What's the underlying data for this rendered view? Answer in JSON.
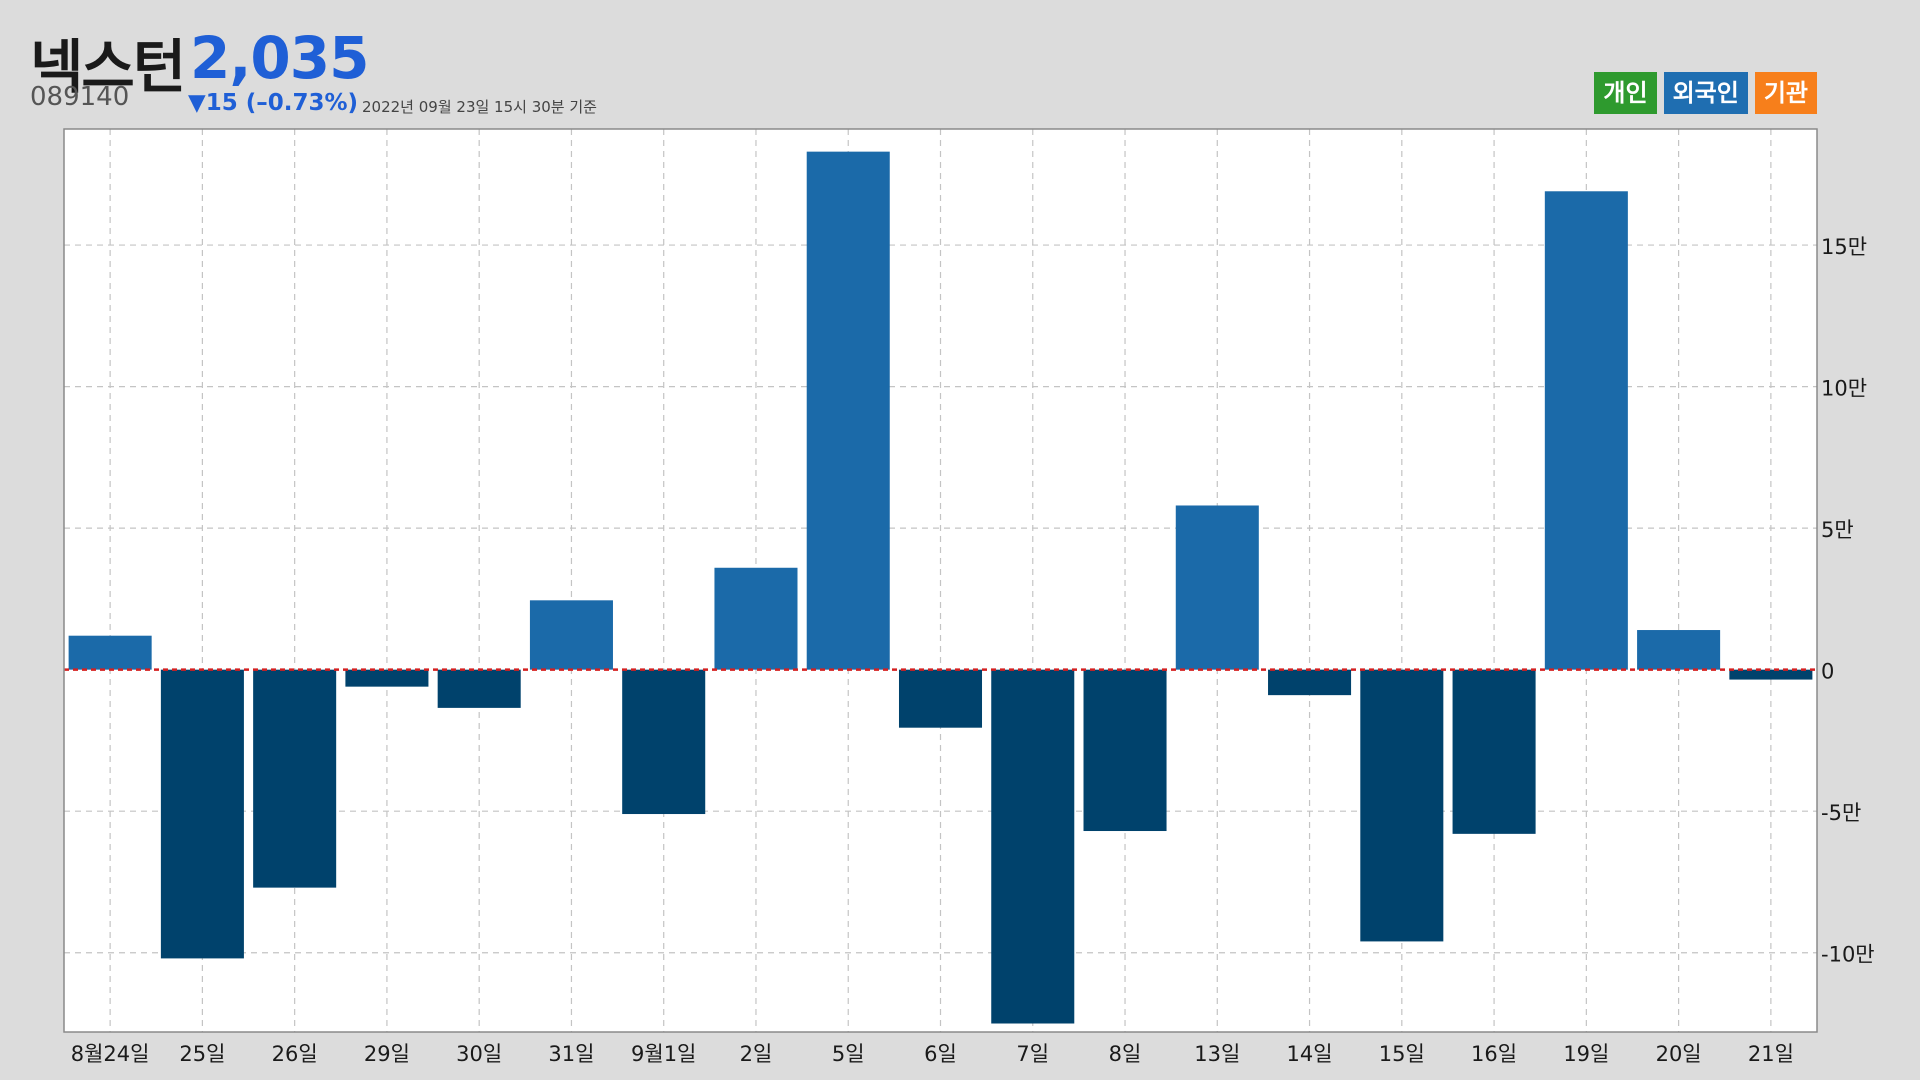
{
  "header": {
    "name": "넥스턴",
    "price": "2,035",
    "code": "089140",
    "change": "▼15 (–0.73%)",
    "basis": "2022년 09월 23일 15시 30분 기준"
  },
  "legend": [
    {
      "label": "개인",
      "color": "#2e9a2e"
    },
    {
      "label": "외국인",
      "color": "#1f6eb1"
    },
    {
      "label": "기관",
      "color": "#f77f1b"
    }
  ],
  "chart_data": {
    "type": "bar",
    "series_name": "외국인",
    "categories": [
      "8월24일",
      "25일",
      "26일",
      "29일",
      "30일",
      "31일",
      "9월1일",
      "2일",
      "5일",
      "6일",
      "7일",
      "8일",
      "13일",
      "14일",
      "15일",
      "16일",
      "19일",
      "20일",
      "21일"
    ],
    "values": [
      12000,
      -102000,
      -77000,
      -6000,
      -13500,
      24500,
      -51000,
      36000,
      183000,
      -20500,
      -125000,
      -57000,
      58000,
      -9000,
      -96000,
      -58000,
      169000,
      14000,
      -3500
    ],
    "ylim": [
      -128000,
      191000
    ],
    "yticks": [
      {
        "value": -100000,
        "label": "-10만"
      },
      {
        "value": -50000,
        "label": "-5만"
      },
      {
        "value": 0,
        "label": "0"
      },
      {
        "value": 50000,
        "label": "5만"
      },
      {
        "value": 100000,
        "label": "10만"
      },
      {
        "value": 150000,
        "label": "15만"
      }
    ],
    "positive_color": "#1b6aa9",
    "negative_color": "#00426c",
    "zero_line_color": "#d42020",
    "grid": true,
    "legend_position": "top-right"
  }
}
